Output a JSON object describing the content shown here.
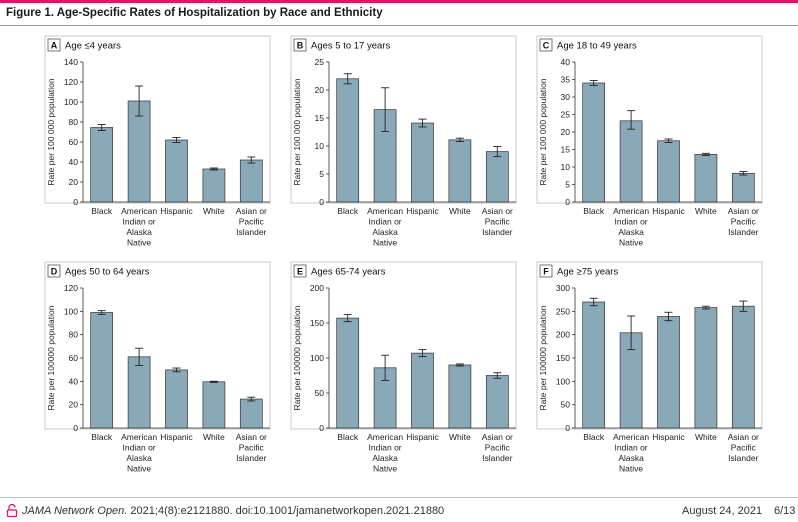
{
  "figure_title": "Figure 1. Age-Specific Rates of Hospitalization by Race and Ethnicity",
  "footer": {
    "journal": "JAMA Network Open.",
    "citation": "2021;4(8):e2121880. doi:10.1001/jamanetworkopen.2021.21880",
    "date": "August 24, 2021",
    "page": "6/13"
  },
  "icons": {
    "open_access": "open-lock-icon"
  },
  "colors": {
    "bar": "#8aa9b8",
    "bar_edge": "#333333",
    "accent": "#d81b60"
  },
  "chart_data": [
    {
      "panel": "A",
      "title": "Age ≤4 years",
      "type": "bar",
      "ylabel": "Rate per 100 000 population",
      "ylim": [
        0,
        140
      ],
      "yticks": [
        0,
        20,
        40,
        60,
        80,
        100,
        120,
        140
      ],
      "categories": [
        [
          "Black"
        ],
        [
          "American",
          "Indian or",
          "Alaska",
          "Native"
        ],
        [
          "Hispanic"
        ],
        [
          "White"
        ],
        [
          "Asian or",
          "Pacific",
          "Islander"
        ]
      ],
      "values": [
        74.5,
        101,
        62,
        33,
        42
      ],
      "error_low": [
        71.5,
        86,
        59.5,
        32,
        39
      ],
      "error_high": [
        77.5,
        116,
        64.5,
        34,
        45
      ]
    },
    {
      "panel": "B",
      "title": "Ages 5 to 17 years",
      "type": "bar",
      "ylabel": "Rate per 100 000 population",
      "ylim": [
        0,
        25
      ],
      "yticks": [
        0,
        5,
        10,
        15,
        20,
        25
      ],
      "categories": [
        [
          "Black"
        ],
        [
          "American",
          "Indian or",
          "Alaska",
          "Native"
        ],
        [
          "Hispanic"
        ],
        [
          "White"
        ],
        [
          "Asian or",
          "Pacific",
          "Islander"
        ]
      ],
      "values": [
        22,
        16.5,
        14.1,
        11.1,
        9
      ],
      "error_low": [
        21.1,
        12.6,
        13.4,
        10.8,
        8.1
      ],
      "error_high": [
        22.9,
        20.4,
        14.8,
        11.4,
        9.9
      ]
    },
    {
      "panel": "C",
      "title": "Age 18 to 49 years",
      "type": "bar",
      "ylabel": "Rate per 100 000 population",
      "ylim": [
        0,
        40
      ],
      "yticks": [
        0,
        5,
        10,
        15,
        20,
        25,
        30,
        35,
        40
      ],
      "categories": [
        [
          "Black"
        ],
        [
          "American",
          "Indian or",
          "Alaska",
          "Native"
        ],
        [
          "Hispanic"
        ],
        [
          "White"
        ],
        [
          "Asian or",
          "Pacific",
          "Islander"
        ]
      ],
      "values": [
        34,
        23.2,
        17.5,
        13.6,
        8.2
      ],
      "error_low": [
        33.3,
        20.8,
        17,
        13.3,
        7.7
      ],
      "error_high": [
        34.7,
        26.1,
        18,
        13.9,
        8.7
      ]
    },
    {
      "panel": "D",
      "title": "Ages 50 to 64 years",
      "type": "bar",
      "ylabel": "Rate per 100000 population",
      "ylim": [
        0,
        120
      ],
      "yticks": [
        0,
        20,
        40,
        60,
        80,
        100,
        120
      ],
      "categories": [
        [
          "Black"
        ],
        [
          "American",
          "Indian or",
          "Alaska",
          "Native"
        ],
        [
          "Hispanic"
        ],
        [
          "White"
        ],
        [
          "Asian or",
          "Pacific",
          "Islander"
        ]
      ],
      "values": [
        99,
        61,
        49.8,
        39.6,
        24.8
      ],
      "error_low": [
        97.4,
        53.6,
        48.2,
        39.1,
        23.2
      ],
      "error_high": [
        100.6,
        68.4,
        51.4,
        40.1,
        26.4
      ]
    },
    {
      "panel": "E",
      "title": "Ages 65-74 years",
      "type": "bar",
      "ylabel": "Rate per 100000 population",
      "ylim": [
        0,
        200
      ],
      "yticks": [
        0,
        50,
        100,
        150,
        200
      ],
      "categories": [
        [
          "Black"
        ],
        [
          "American",
          "Indian or",
          "Alaska",
          "Native"
        ],
        [
          "Hispanic"
        ],
        [
          "White"
        ],
        [
          "Asian or",
          "Pacific",
          "Islander"
        ]
      ],
      "values": [
        157,
        86,
        107,
        90,
        75
      ],
      "error_low": [
        152,
        68,
        102,
        88.5,
        71
      ],
      "error_high": [
        162,
        104,
        112,
        91.5,
        79
      ]
    },
    {
      "panel": "F",
      "title": "Age ≥75 years",
      "type": "bar",
      "ylabel": "Rate per 100000 population",
      "ylim": [
        0,
        300
      ],
      "yticks": [
        0,
        50,
        100,
        150,
        200,
        250,
        300
      ],
      "categories": [
        [
          "Black"
        ],
        [
          "American",
          "Indian or",
          "Alaska",
          "Native"
        ],
        [
          "Hispanic"
        ],
        [
          "White"
        ],
        [
          "Asian or",
          "Pacific",
          "Islander"
        ]
      ],
      "values": [
        270,
        204,
        239,
        258,
        261
      ],
      "error_low": [
        262,
        168,
        230,
        255,
        250
      ],
      "error_high": [
        278,
        240,
        248,
        261,
        272
      ]
    }
  ]
}
